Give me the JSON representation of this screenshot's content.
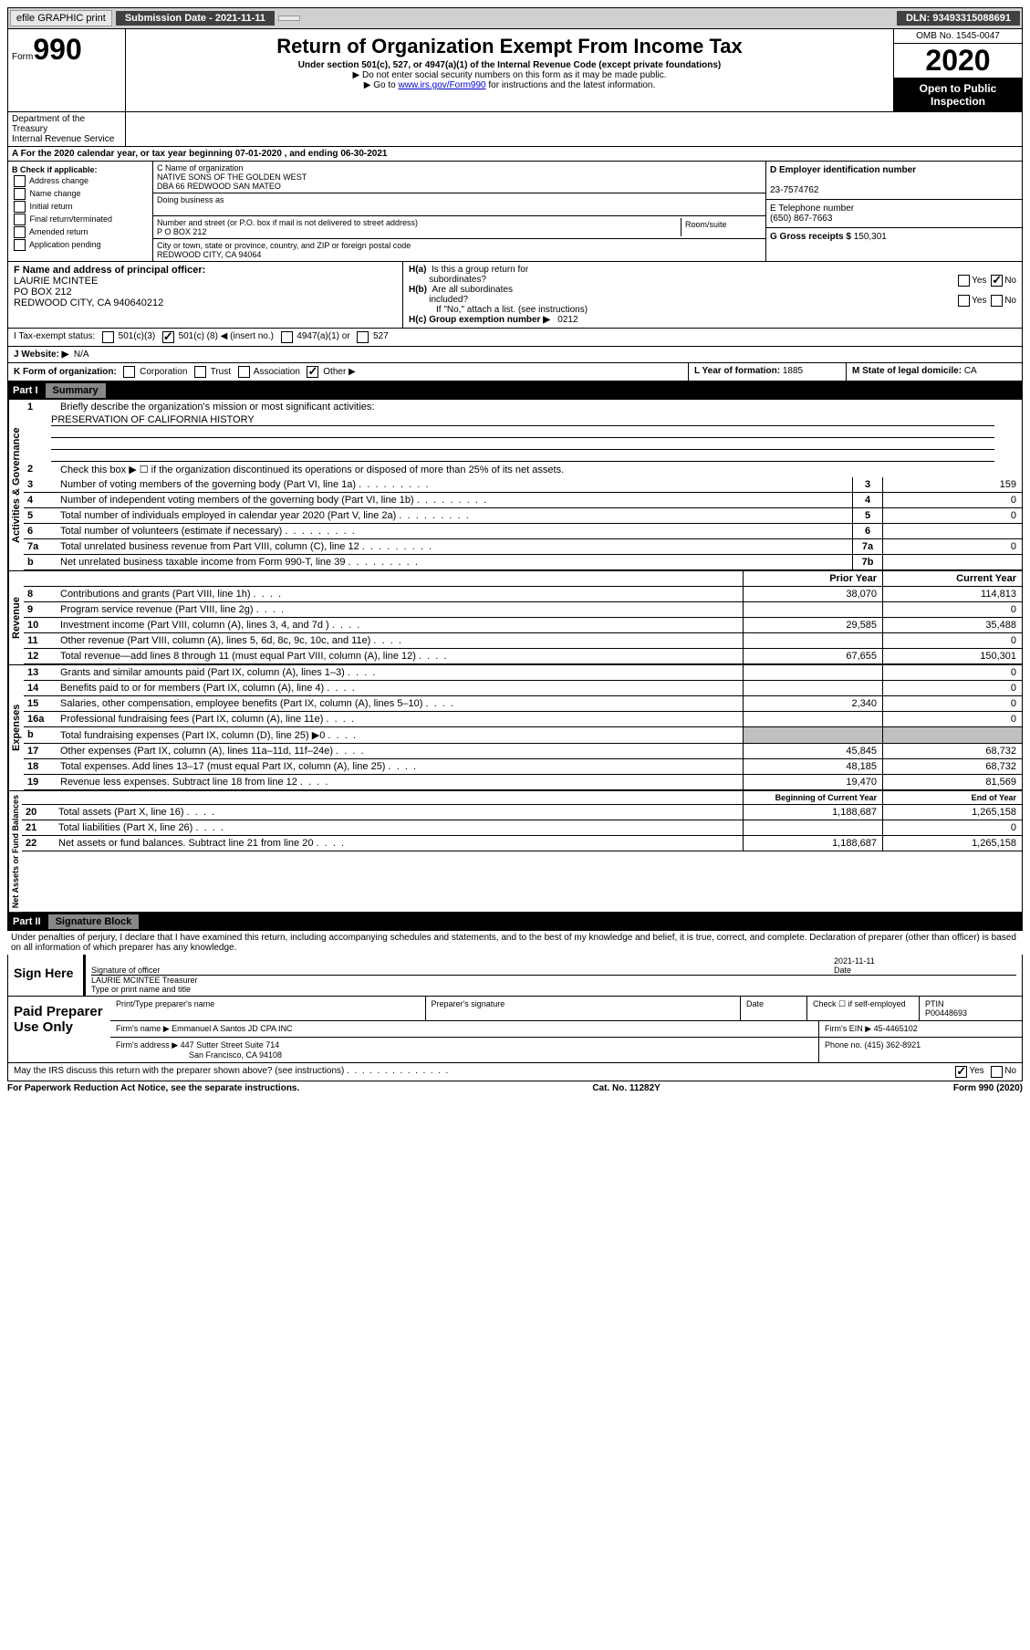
{
  "topbar": {
    "efile": "efile GRAPHIC print",
    "submission_label": "Submission Date - 2021-11-11",
    "dln_label": "DLN: 93493315088691"
  },
  "header": {
    "form_word": "Form",
    "form_num": "990",
    "title": "Return of Organization Exempt From Income Tax",
    "subtitle": "Under section 501(c), 527, or 4947(a)(1) of the Internal Revenue Code (except private foundations)",
    "arrow1": "▶ Do not enter social security numbers on this form as it may be made public.",
    "arrow2_pre": "▶ Go to ",
    "arrow2_link": "www.irs.gov/Form990",
    "arrow2_post": " for instructions and the latest information.",
    "omb": "OMB No. 1545-0047",
    "year": "2020",
    "open_public": "Open to Public Inspection",
    "dept": "Department of the Treasury",
    "irs": "Internal Revenue Service"
  },
  "rowA": "A For the 2020 calendar year, or tax year beginning 07-01-2020    , and ending 06-30-2021",
  "sectionB": {
    "check_label": "B Check if applicable:",
    "opts": [
      "Address change",
      "Name change",
      "Initial return",
      "Final return/terminated",
      "Amended return",
      "Application pending"
    ],
    "c_label": "C Name of organization",
    "org1": "NATIVE SONS OF THE GOLDEN WEST",
    "org2": "DBA 66 REDWOOD SAN MATEO",
    "dba_label": "Doing business as",
    "street_label": "Number and street (or P.O. box if mail is not delivered to street address)",
    "room_label": "Room/suite",
    "street": "P O BOX 212",
    "city_label": "City or town, state or province, country, and ZIP or foreign postal code",
    "city": "REDWOOD CITY, CA  94064",
    "d_label": "D Employer identification number",
    "ein": "23-7574762",
    "e_label": "E Telephone number",
    "phone": "(650) 867-7663",
    "g_label": "G Gross receipts $ ",
    "gross": "150,301"
  },
  "rowF": {
    "f_label": "F Name and address of principal officer:",
    "name": "LAURIE MCINTEE",
    "addr1": "PO BOX 212",
    "addr2": "REDWOOD CITY, CA  940640212",
    "ha_label": "H(a)  Is this a group return for subordinates?",
    "hb_label": "H(b)  Are all subordinates included?",
    "hb_note": "If \"No,\" attach a list. (see instructions)",
    "hc_label": "H(c)  Group exemption number ▶",
    "hc_val": "0212",
    "yes": "Yes",
    "no": "No"
  },
  "rowI": {
    "label": "I   Tax-exempt status:",
    "c3": "501(c)(3)",
    "c_pre": "501(c) ( ",
    "c_num": "8",
    "c_post": " ) ◀ (insert no.)",
    "a1": "4947(a)(1) or",
    "o527": "527"
  },
  "rowJ": {
    "label": "J   Website: ▶",
    "val": "N/A"
  },
  "rowK": {
    "label": "K Form of organization:",
    "corp": "Corporation",
    "trust": "Trust",
    "assoc": "Association",
    "other": "Other ▶",
    "l_label": "L Year of formation: ",
    "l_val": "1885",
    "m_label": "M State of legal domicile: ",
    "m_val": "CA"
  },
  "part1": {
    "num": "Part I",
    "title": "Summary",
    "line1": "Briefly describe the organization's mission or most significant activities:",
    "mission": "PRESERVATION OF CALIFORNIA HISTORY",
    "line2": "Check this box ▶ ☐  if the organization discontinued its operations or disposed of more than 25% of its net assets.",
    "vert_ag": "Activities & Governance",
    "vert_rev": "Revenue",
    "vert_exp": "Expenses",
    "vert_na": "Net Assets or Fund Balances",
    "col_prior": "Prior Year",
    "col_current": "Current Year",
    "col_beg": "Beginning of Current Year",
    "col_end": "End of Year",
    "rows_gov": [
      {
        "n": "3",
        "d": "Number of voting members of the governing body (Part VI, line 1a)",
        "b": "3",
        "v": "159"
      },
      {
        "n": "4",
        "d": "Number of independent voting members of the governing body (Part VI, line 1b)",
        "b": "4",
        "v": "0"
      },
      {
        "n": "5",
        "d": "Total number of individuals employed in calendar year 2020 (Part V, line 2a)",
        "b": "5",
        "v": "0"
      },
      {
        "n": "6",
        "d": "Total number of volunteers (estimate if necessary)",
        "b": "6",
        "v": ""
      },
      {
        "n": "7a",
        "d": "Total unrelated business revenue from Part VIII, column (C), line 12",
        "b": "7a",
        "v": "0"
      },
      {
        "n": "b",
        "d": "Net unrelated business taxable income from Form 990-T, line 39",
        "b": "7b",
        "v": ""
      }
    ],
    "rows_rev": [
      {
        "n": "8",
        "d": "Contributions and grants (Part VIII, line 1h)",
        "p": "38,070",
        "c": "114,813"
      },
      {
        "n": "9",
        "d": "Program service revenue (Part VIII, line 2g)",
        "p": "",
        "c": "0"
      },
      {
        "n": "10",
        "d": "Investment income (Part VIII, column (A), lines 3, 4, and 7d )",
        "p": "29,585",
        "c": "35,488"
      },
      {
        "n": "11",
        "d": "Other revenue (Part VIII, column (A), lines 5, 6d, 8c, 9c, 10c, and 11e)",
        "p": "",
        "c": "0"
      },
      {
        "n": "12",
        "d": "Total revenue—add lines 8 through 11 (must equal Part VIII, column (A), line 12)",
        "p": "67,655",
        "c": "150,301"
      }
    ],
    "rows_exp": [
      {
        "n": "13",
        "d": "Grants and similar amounts paid (Part IX, column (A), lines 1–3)",
        "p": "",
        "c": "0"
      },
      {
        "n": "14",
        "d": "Benefits paid to or for members (Part IX, column (A), line 4)",
        "p": "",
        "c": "0"
      },
      {
        "n": "15",
        "d": "Salaries, other compensation, employee benefits (Part IX, column (A), lines 5–10)",
        "p": "2,340",
        "c": "0"
      },
      {
        "n": "16a",
        "d": "Professional fundraising fees (Part IX, column (A), line 11e)",
        "p": "",
        "c": "0"
      },
      {
        "n": "b",
        "d": "Total fundraising expenses (Part IX, column (D), line 25) ▶0",
        "p": "grey",
        "c": "grey"
      },
      {
        "n": "17",
        "d": "Other expenses (Part IX, column (A), lines 11a–11d, 11f–24e)",
        "p": "45,845",
        "c": "68,732"
      },
      {
        "n": "18",
        "d": "Total expenses. Add lines 13–17 (must equal Part IX, column (A), line 25)",
        "p": "48,185",
        "c": "68,732"
      },
      {
        "n": "19",
        "d": "Revenue less expenses. Subtract line 18 from line 12",
        "p": "19,470",
        "c": "81,569"
      }
    ],
    "rows_na": [
      {
        "n": "20",
        "d": "Total assets (Part X, line 16)",
        "p": "1,188,687",
        "c": "1,265,158"
      },
      {
        "n": "21",
        "d": "Total liabilities (Part X, line 26)",
        "p": "",
        "c": "0"
      },
      {
        "n": "22",
        "d": "Net assets or fund balances. Subtract line 21 from line 20",
        "p": "1,188,687",
        "c": "1,265,158"
      }
    ]
  },
  "part2": {
    "num": "Part II",
    "title": "Signature Block",
    "perjury": "Under penalties of perjury, I declare that I have examined this return, including accompanying schedules and statements, and to the best of my knowledge and belief, it is true, correct, and complete. Declaration of preparer (other than officer) is based on all information of which preparer has any knowledge.",
    "sign_here": "Sign Here",
    "sig_officer": "Signature of officer",
    "date_label": "Date",
    "date_val": "2021-11-11",
    "officer_name": "LAURIE MCINTEE  Treasurer",
    "type_name": "Type or print name and title",
    "paid": "Paid Preparer Use Only",
    "pt_name_label": "Print/Type preparer's name",
    "prep_sig_label": "Preparer's signature",
    "check_self": "Check ☐ if self-employed",
    "ptin_label": "PTIN",
    "ptin": "P00448693",
    "firm_name_label": "Firm's name    ▶",
    "firm_name": "Emmanuel A Santos JD CPA INC",
    "firm_ein_label": "Firm's EIN ▶",
    "firm_ein": "45-4465102",
    "firm_addr_label": "Firm's address ▶",
    "firm_addr1": "447 Sutter Street Suite 714",
    "firm_addr2": "San Francisco, CA  94108",
    "phone_label": "Phone no. ",
    "phone": "(415) 362-8921",
    "discuss": "May the IRS discuss this return with the preparer shown above? (see instructions)",
    "yes": "Yes",
    "no": "No"
  },
  "footer": {
    "pra": "For Paperwork Reduction Act Notice, see the separate instructions.",
    "cat": "Cat. No. 11282Y",
    "form": "Form 990 (2020)"
  }
}
